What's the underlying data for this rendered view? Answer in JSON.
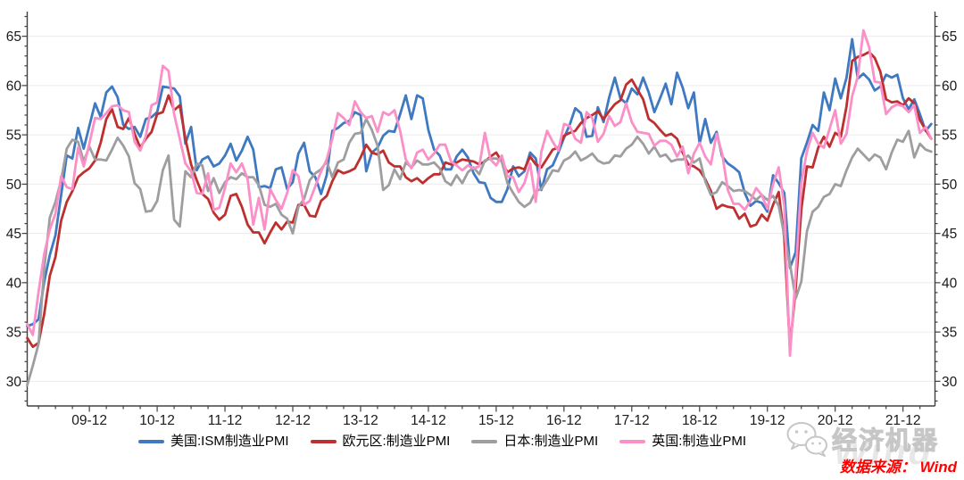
{
  "branding": {
    "logo_text": "经济机器",
    "watermark_text": "Wind",
    "source_label": "数据来源： Wind",
    "source_color": "#fe0000",
    "logo_color": "#c6c6c6"
  },
  "chart_data": {
    "type": "line",
    "title": "",
    "xlabel": "",
    "ylabel": "",
    "x_start": "2009-01",
    "x_end": "2022-05",
    "x_frequency": "monthly",
    "x_tick_labels": [
      "09-12",
      "10-12",
      "11-12",
      "12-12",
      "13-12",
      "14-12",
      "15-12",
      "16-12",
      "17-12",
      "18-12",
      "19-12",
      "20-12",
      "21-12"
    ],
    "y_ticks": [
      30,
      35,
      40,
      45,
      50,
      55,
      60,
      65
    ],
    "ylim": [
      27.5,
      67.5
    ],
    "grid": "horizontal",
    "legend_position": "bottom",
    "axis_color": "#404040",
    "grid_color": "#ececec",
    "series": [
      {
        "key": "us",
        "name": "美国:ISM制造业PMI",
        "color": "#3e79c1",
        "values": [
          35.6,
          35.8,
          36.3,
          40.1,
          42.8,
          44.8,
          48.9,
          52.9,
          52.6,
          55.7,
          53.6,
          55.9,
          58.2,
          56.8,
          59.3,
          59.9,
          58.8,
          56.0,
          55.6,
          55.8,
          54.8,
          56.6,
          56.8,
          57.3,
          59.9,
          59.8,
          59.7,
          58.9,
          54.1,
          55.8,
          51.4,
          52.5,
          52.8,
          51.8,
          52.1,
          52.9,
          54.1,
          52.4,
          53.4,
          54.8,
          53.5,
          49.7,
          49.8,
          49.6,
          51.5,
          51.7,
          49.5,
          50.2,
          53.1,
          54.2,
          51.3,
          50.7,
          49.0,
          50.9,
          55.4,
          55.7,
          56.2,
          56.4,
          57.3,
          57.0,
          51.3,
          53.2,
          53.7,
          54.9,
          55.4,
          55.3,
          57.1,
          59.0,
          56.6,
          59.0,
          58.7,
          55.5,
          53.5,
          52.9,
          51.5,
          51.5,
          52.8,
          53.5,
          52.7,
          51.1,
          50.2,
          50.1,
          48.6,
          48.2,
          48.2,
          49.5,
          51.8,
          50.8,
          51.3,
          53.2,
          52.6,
          49.4,
          51.5,
          51.9,
          53.2,
          54.7,
          56.0,
          57.7,
          57.2,
          54.8,
          54.9,
          57.8,
          56.3,
          58.8,
          60.8,
          58.7,
          58.2,
          59.7,
          59.1,
          60.8,
          59.3,
          57.3,
          58.7,
          60.2,
          58.1,
          61.3,
          59.8,
          57.7,
          59.3,
          54.1,
          56.6,
          54.2,
          55.3,
          52.8,
          52.1,
          51.7,
          51.2,
          49.1,
          47.8,
          48.3,
          48.1,
          47.2,
          50.9,
          50.1,
          49.1,
          41.5,
          43.1,
          52.6,
          54.2,
          56.0,
          55.4,
          59.3,
          57.5,
          60.7,
          58.7,
          60.8,
          64.7,
          60.7,
          61.2,
          60.6,
          59.5,
          59.9,
          61.1,
          60.8,
          61.1,
          58.7,
          57.6,
          58.6,
          57.1,
          55.4,
          56.1
        ]
      },
      {
        "key": "eurozone",
        "name": "欧元区:制造业PMI",
        "color": "#be2f2f",
        "values": [
          34.4,
          33.5,
          33.9,
          36.8,
          40.7,
          42.6,
          46.3,
          48.2,
          49.3,
          50.7,
          51.2,
          51.6,
          52.4,
          54.2,
          56.6,
          57.6,
          55.8,
          55.6,
          56.7,
          55.1,
          53.7,
          54.6,
          55.3,
          57.1,
          57.3,
          59.0,
          57.5,
          58.0,
          54.6,
          52.0,
          50.4,
          49.0,
          48.5,
          47.1,
          46.4,
          46.9,
          48.8,
          49.0,
          47.7,
          45.9,
          45.1,
          45.1,
          44.0,
          45.1,
          46.1,
          45.4,
          46.2,
          46.1,
          47.9,
          47.9,
          46.8,
          46.7,
          48.3,
          48.8,
          50.3,
          51.4,
          51.1,
          51.3,
          51.6,
          52.7,
          54.0,
          53.2,
          53.0,
          53.4,
          52.2,
          51.8,
          51.8,
          50.7,
          50.3,
          50.6,
          50.1,
          50.6,
          51.0,
          51.0,
          52.2,
          52.0,
          52.2,
          52.5,
          52.4,
          52.3,
          52.0,
          52.3,
          52.8,
          53.2,
          52.3,
          51.2,
          51.6,
          51.7,
          51.5,
          52.8,
          52.0,
          51.7,
          52.6,
          53.5,
          53.7,
          54.9,
          55.2,
          55.4,
          56.2,
          56.7,
          57.0,
          57.4,
          56.6,
          57.4,
          58.1,
          58.5,
          60.1,
          60.6,
          59.6,
          58.6,
          56.6,
          56.2,
          55.5,
          54.9,
          55.1,
          54.6,
          53.2,
          52.0,
          51.8,
          51.4,
          50.5,
          49.3,
          47.5,
          47.9,
          47.7,
          47.6,
          46.5,
          47.0,
          45.7,
          45.9,
          46.9,
          46.3,
          47.9,
          49.2,
          44.5,
          33.4,
          39.4,
          47.4,
          51.8,
          51.7,
          53.7,
          54.8,
          53.8,
          55.2,
          54.8,
          57.9,
          62.5,
          62.9,
          63.1,
          63.4,
          62.8,
          61.4,
          58.6,
          58.3,
          58.4,
          58.0,
          58.7,
          58.2,
          56.5,
          55.5,
          54.6
        ]
      },
      {
        "key": "japan",
        "name": "日本:制造业PMI",
        "color": "#9e9ea0",
        "values": [
          29.6,
          31.6,
          33.8,
          41.4,
          46.6,
          48.2,
          50.4,
          53.6,
          54.5,
          54.3,
          52.3,
          53.8,
          52.5,
          52.5,
          52.4,
          53.5,
          54.7,
          53.9,
          52.8,
          50.1,
          49.5,
          47.2,
          47.3,
          48.3,
          51.4,
          52.9,
          46.4,
          45.7,
          51.3,
          50.7,
          52.1,
          51.9,
          49.3,
          50.6,
          49.1,
          50.2,
          50.7,
          50.5,
          51.1,
          50.7,
          50.7,
          49.9,
          47.9,
          47.7,
          48.0,
          46.9,
          46.5,
          45.0,
          47.7,
          48.5,
          50.4,
          51.1,
          51.5,
          52.3,
          50.7,
          52.2,
          52.5,
          54.2,
          55.1,
          55.2,
          56.6,
          55.5,
          53.9,
          49.4,
          49.9,
          51.5,
          50.5,
          52.2,
          51.7,
          52.4,
          52.0,
          52.0,
          52.2,
          51.6,
          50.3,
          49.9,
          50.9,
          50.1,
          51.2,
          51.7,
          51.0,
          52.4,
          52.6,
          52.6,
          52.3,
          50.1,
          49.1,
          48.2,
          47.7,
          48.1,
          49.3,
          49.5,
          50.4,
          51.4,
          51.3,
          52.4,
          52.7,
          53.3,
          52.4,
          52.7,
          53.1,
          52.4,
          52.1,
          52.2,
          52.9,
          52.8,
          53.6,
          54.0,
          54.8,
          54.1,
          53.1,
          53.8,
          52.8,
          53.0,
          52.3,
          52.5,
          52.5,
          52.9,
          52.2,
          52.6,
          50.3,
          48.9,
          49.2,
          50.2,
          49.8,
          49.3,
          49.4,
          49.3,
          48.9,
          48.4,
          48.9,
          48.4,
          48.8,
          47.8,
          44.8,
          41.9,
          38.4,
          40.1,
          45.2,
          47.2,
          47.7,
          48.7,
          49.0,
          50.0,
          49.8,
          51.4,
          52.7,
          53.6,
          53.0,
          52.4,
          53.0,
          52.7,
          51.5,
          53.2,
          54.5,
          54.3,
          55.4,
          52.7,
          54.1,
          53.5,
          53.3
        ]
      },
      {
        "key": "uk",
        "name": "英国:制造业PMI",
        "color": "#fb8fc7",
        "values": [
          35.8,
          34.7,
          39.1,
          42.9,
          45.4,
          47.0,
          50.8,
          49.7,
          49.5,
          53.7,
          51.8,
          54.1,
          56.7,
          56.6,
          57.2,
          57.9,
          58.0,
          57.5,
          57.3,
          54.3,
          53.4,
          54.9,
          58.0,
          58.3,
          62.0,
          61.5,
          57.1,
          54.6,
          52.1,
          51.3,
          49.1,
          49.0,
          51.1,
          47.4,
          47.6,
          49.6,
          52.1,
          51.2,
          52.1,
          50.5,
          45.9,
          48.6,
          45.4,
          49.5,
          48.4,
          47.5,
          49.1,
          51.4,
          50.8,
          47.9,
          48.3,
          49.8,
          51.3,
          52.5,
          54.6,
          57.2,
          56.7,
          56.0,
          58.4,
          57.3,
          56.7,
          56.9,
          55.3,
          57.3,
          57.0,
          57.5,
          55.4,
          52.5,
          51.6,
          53.2,
          53.5,
          52.5,
          53.1,
          54.0,
          54.0,
          52.3,
          51.9,
          51.4,
          51.9,
          51.6,
          51.8,
          55.2,
          52.5,
          51.9,
          52.9,
          50.8,
          50.7,
          49.2,
          50.1,
          52.1,
          48.2,
          53.3,
          55.4,
          54.3,
          53.4,
          56.1,
          55.9,
          54.6,
          54.2,
          57.3,
          56.7,
          54.3,
          55.1,
          56.9,
          55.9,
          56.3,
          58.2,
          56.3,
          55.3,
          55.2,
          55.1,
          53.9,
          54.4,
          54.4,
          54.0,
          52.8,
          53.8,
          51.1,
          53.1,
          54.2,
          52.8,
          52.0,
          55.1,
          53.1,
          49.4,
          48.0,
          48.0,
          47.4,
          48.3,
          49.6,
          48.9,
          47.5,
          50.0,
          51.7,
          47.8,
          32.6,
          40.7,
          50.1,
          53.3,
          55.2,
          54.1,
          53.7,
          55.6,
          57.5,
          54.1,
          55.1,
          58.9,
          60.9,
          65.6,
          63.9,
          60.4,
          60.3,
          57.1,
          57.8,
          58.1,
          57.9,
          57.3,
          58.0,
          55.2,
          55.8,
          54.6
        ]
      }
    ]
  }
}
